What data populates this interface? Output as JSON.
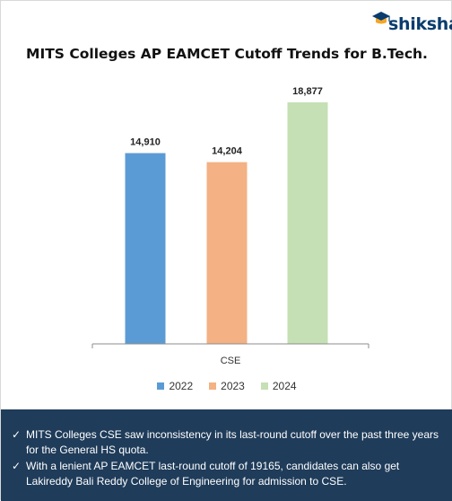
{
  "brand": {
    "logo_text": "shiksha"
  },
  "title": "MITS Colleges AP EAMCET Cutoff Trends for B.Tech.",
  "chart_data": {
    "type": "bar",
    "title": "MITS Colleges AP EAMCET Cutoff Trends for B.Tech.",
    "categories": [
      "CSE"
    ],
    "series": [
      {
        "name": "2022",
        "values": [
          14910
        ],
        "label": "14,910",
        "color": "#5b9bd5"
      },
      {
        "name": "2023",
        "values": [
          14204
        ],
        "label": "14,204",
        "color": "#f4b183"
      },
      {
        "name": "2024",
        "values": [
          18877
        ],
        "label": "18,877",
        "color": "#c5e0b4"
      }
    ],
    "xlabel": "",
    "ylabel": "",
    "ylim": [
      0,
      20000
    ],
    "grid": false,
    "legend_position": "bottom"
  },
  "notes": [
    "MITS Colleges CSE saw inconsistency in its last-round cutoff over the past three years for the General HS quota.",
    "With a lenient AP EAMCET last-round cutoff of 19165, candidates can also get Lakireddy Bali Reddy College of Engineering for admission to CSE."
  ],
  "icons": {
    "bullet": "check-icon",
    "logo": "graduation-cap-icon"
  }
}
